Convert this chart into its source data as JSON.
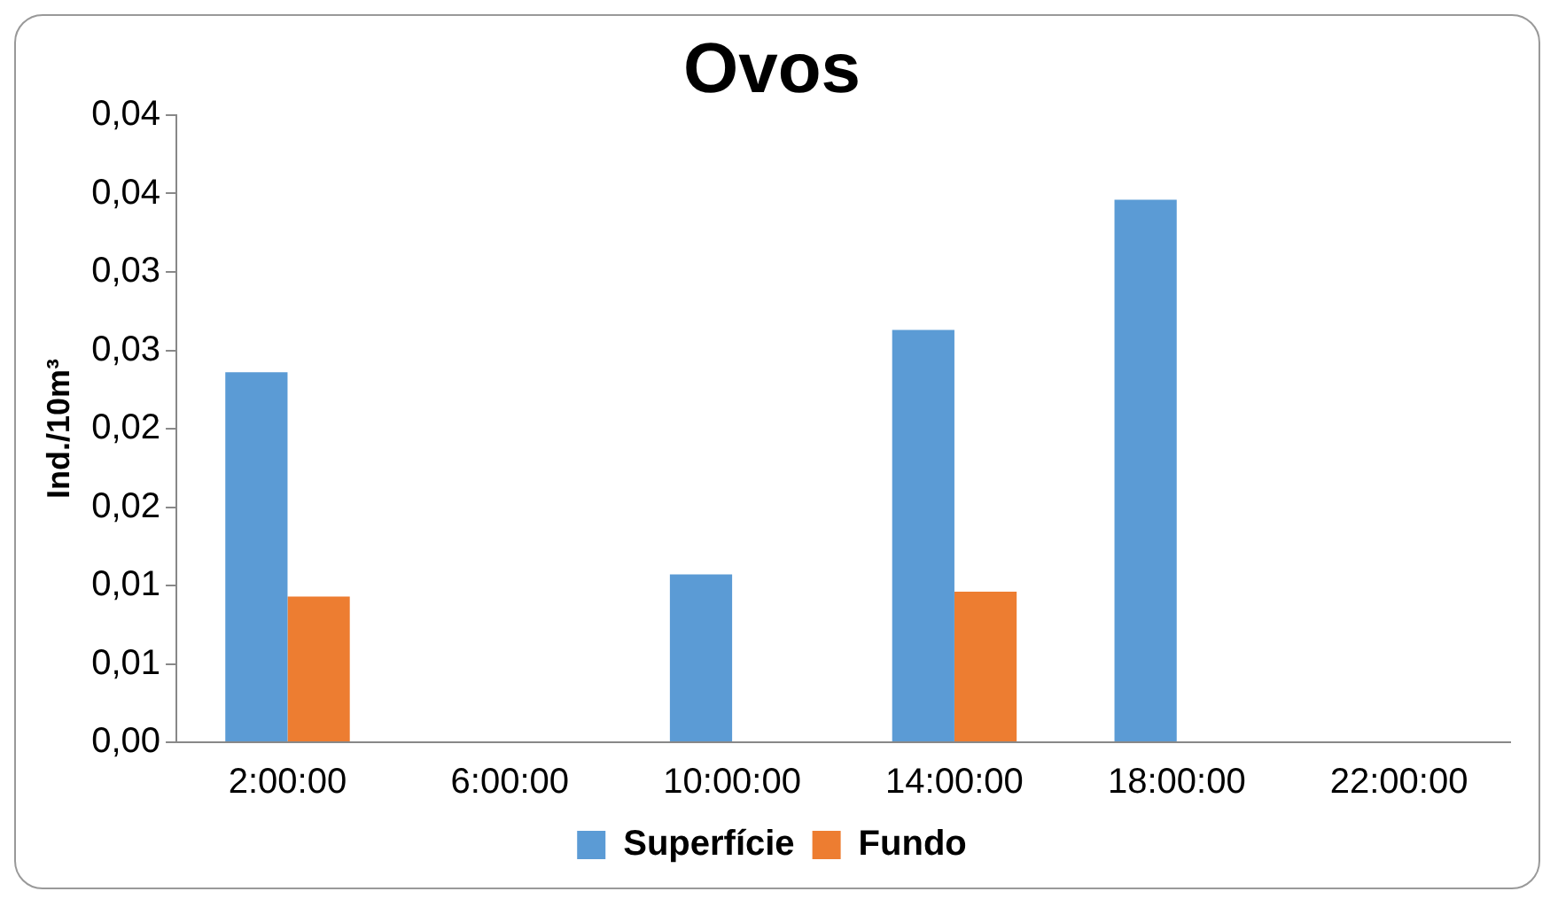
{
  "chart_data": {
    "type": "bar",
    "title": "Ovos",
    "ylabel": "Ind./10m³",
    "categories": [
      "2:00:00",
      "6:00:00",
      "10:00:00",
      "14:00:00",
      "18:00:00",
      "22:00:00"
    ],
    "series": [
      {
        "name": "Superfície",
        "color": "#5b9bd5",
        "values": [
          0.0236,
          0,
          0.0107,
          0.0263,
          0.0346,
          0
        ]
      },
      {
        "name": "Fundo",
        "color": "#ed7d31",
        "values": [
          0.0093,
          0,
          0,
          0.0096,
          0,
          0
        ]
      }
    ],
    "ylim": [
      0,
      0.04
    ],
    "yticks": [
      {
        "value": 0,
        "label": "0,00"
      },
      {
        "value": 0.005,
        "label": "0,01"
      },
      {
        "value": 0.01,
        "label": "0,01"
      },
      {
        "value": 0.015,
        "label": "0,02"
      },
      {
        "value": 0.02,
        "label": "0,02"
      },
      {
        "value": 0.025,
        "label": "0,03"
      },
      {
        "value": 0.03,
        "label": "0,03"
      },
      {
        "value": 0.035,
        "label": "0,04"
      },
      {
        "value": 0.04,
        "label": "0,04"
      }
    ],
    "grid": false,
    "legend": "bottom"
  }
}
